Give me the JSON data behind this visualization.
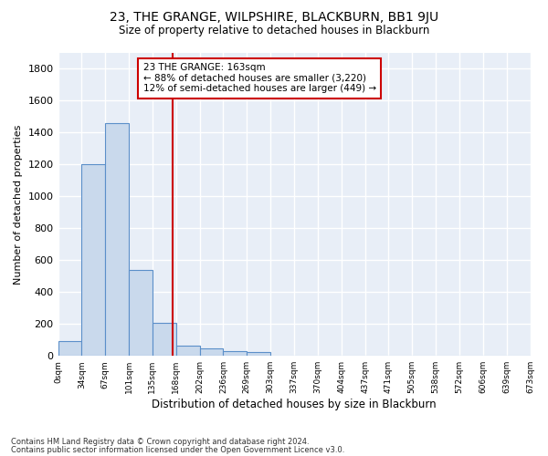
{
  "title": "23, THE GRANGE, WILPSHIRE, BLACKBURN, BB1 9JU",
  "subtitle": "Size of property relative to detached houses in Blackburn",
  "xlabel": "Distribution of detached houses by size in Blackburn",
  "ylabel": "Number of detached properties",
  "bar_color": "#c9d9ec",
  "bar_edge_color": "#5b8fc9",
  "background_color": "#e8eef7",
  "grid_color": "#ffffff",
  "bin_labels": [
    "0sqm",
    "34sqm",
    "67sqm",
    "101sqm",
    "135sqm",
    "168sqm",
    "202sqm",
    "236sqm",
    "269sqm",
    "303sqm",
    "337sqm",
    "370sqm",
    "404sqm",
    "437sqm",
    "471sqm",
    "505sqm",
    "538sqm",
    "572sqm",
    "606sqm",
    "639sqm",
    "673sqm"
  ],
  "bar_values": [
    90,
    1200,
    1460,
    540,
    205,
    65,
    45,
    30,
    25,
    0,
    0,
    0,
    0,
    0,
    0,
    0,
    0,
    0,
    0,
    0
  ],
  "ylim": [
    0,
    1900
  ],
  "yticks": [
    0,
    200,
    400,
    600,
    800,
    1000,
    1200,
    1400,
    1600,
    1800
  ],
  "property_line_x": 4.85,
  "annotation_text": "23 THE GRANGE: 163sqm\n← 88% of detached houses are smaller (3,220)\n12% of semi-detached houses are larger (449) →",
  "annotation_box_color": "#ffffff",
  "annotation_border_color": "#cc0000",
  "footer_line1": "Contains HM Land Registry data © Crown copyright and database right 2024.",
  "footer_line2": "Contains public sector information licensed under the Open Government Licence v3.0."
}
